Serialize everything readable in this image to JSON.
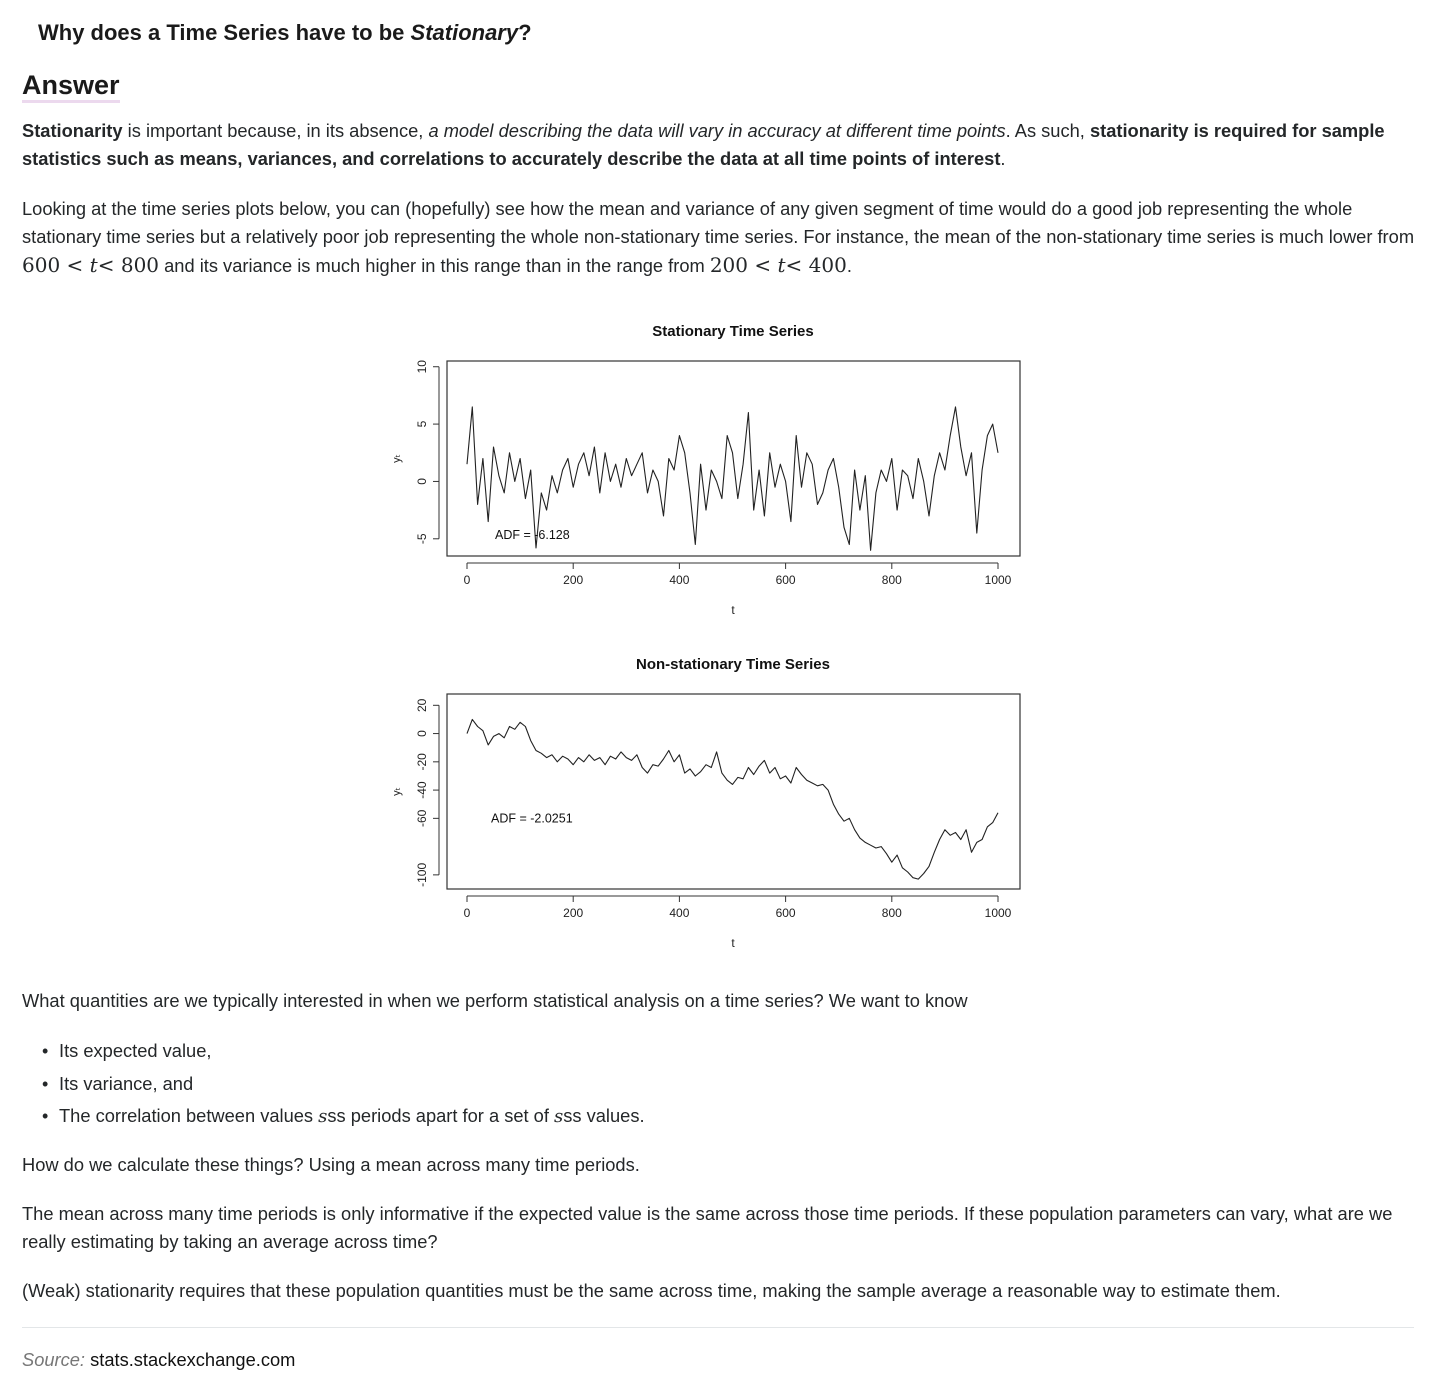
{
  "question": {
    "title_pre": "Why does a Time Series have to be ",
    "title_em": "Stationary",
    "title_post": "?"
  },
  "answer_heading": "Answer",
  "p1": {
    "b1": "Stationarity",
    "t1": " is important because, in its absence, ",
    "i1": "a model describing the data will vary in accuracy at different time points",
    "t2": ". As such, ",
    "b2": "stationarity is required for sample statistics such as means, variances, and correlations to accurately describe the data at all time points of interest",
    "t3": "."
  },
  "p2": {
    "t1": "Looking at the time series plots below, you can (hopefully) see how the mean and variance of any given segment of time would do a good job representing the whole stationary time series but a relatively poor job representing the whole non-stationary time series. For instance, the mean of the non-stationary time series is much lower from ",
    "m1a": "600",
    "m1b": "t",
    "m1c": "800",
    "t2": " and its variance is much higher in this range than in the range from ",
    "m2a": "200",
    "m2b": "t",
    "m2c": "400",
    "t3": ".",
    "lt": "<"
  },
  "chart_data": [
    {
      "type": "line",
      "title": "Stationary Time Series",
      "xlabel": "t",
      "ylabel": "yₜ",
      "xlim": [
        0,
        1000
      ],
      "ylim": [
        -6.5,
        10.5
      ],
      "xticks": [
        "0",
        "200",
        "400",
        "600",
        "800",
        "1000"
      ],
      "yticks": [
        "-5",
        "0",
        "5",
        "10"
      ],
      "annotation": "ADF = -6.128",
      "x": [
        0,
        10,
        20,
        30,
        40,
        50,
        60,
        70,
        80,
        90,
        100,
        110,
        120,
        130,
        140,
        150,
        160,
        170,
        180,
        190,
        200,
        210,
        220,
        230,
        240,
        250,
        260,
        270,
        280,
        290,
        300,
        310,
        320,
        330,
        340,
        350,
        360,
        370,
        380,
        390,
        400,
        410,
        420,
        430,
        440,
        450,
        460,
        470,
        480,
        490,
        500,
        510,
        520,
        530,
        540,
        550,
        560,
        570,
        580,
        590,
        600,
        610,
        620,
        630,
        640,
        650,
        660,
        670,
        680,
        690,
        700,
        710,
        720,
        730,
        740,
        750,
        760,
        770,
        780,
        790,
        800,
        810,
        820,
        830,
        840,
        850,
        860,
        870,
        880,
        890,
        900,
        910,
        920,
        930,
        940,
        950,
        960,
        970,
        980,
        990,
        1000
      ],
      "values": [
        1.5,
        6.5,
        -2.0,
        2.0,
        -3.5,
        3.0,
        0.5,
        -1.0,
        2.5,
        0.0,
        2.0,
        -1.5,
        1.0,
        -5.8,
        -1.0,
        -2.5,
        0.5,
        -1.0,
        1.0,
        2.0,
        -0.5,
        1.5,
        2.5,
        0.5,
        3.0,
        -1.0,
        2.5,
        0.0,
        1.5,
        -0.5,
        2.0,
        0.5,
        1.5,
        2.5,
        -1.0,
        1.0,
        0.0,
        -3.0,
        2.0,
        1.0,
        4.0,
        2.5,
        -1.0,
        -5.5,
        1.5,
        -2.5,
        1.0,
        0.0,
        -1.5,
        4.0,
        2.5,
        -1.5,
        1.5,
        6.0,
        -2.5,
        1.0,
        -3.0,
        2.5,
        -0.5,
        1.5,
        0.0,
        -3.5,
        4.0,
        -0.5,
        2.5,
        1.5,
        -2.0,
        -1.0,
        1.0,
        2.0,
        -0.5,
        -4.0,
        -5.5,
        1.0,
        -2.5,
        0.5,
        -6.0,
        -1.0,
        1.0,
        0.0,
        2.0,
        -2.5,
        1.0,
        0.5,
        -1.5,
        2.0,
        0.0,
        -3.0,
        0.5,
        2.5,
        1.0,
        4.0,
        6.5,
        3.0,
        0.5,
        2.5,
        -4.5,
        1.0,
        4.0,
        5.0,
        2.5
      ]
    },
    {
      "type": "line",
      "title": "Non-stationary Time Series",
      "xlabel": "t",
      "ylabel": "yₜ",
      "xlim": [
        0,
        1000
      ],
      "ylim": [
        -110,
        28
      ],
      "xticks": [
        "0",
        "200",
        "400",
        "600",
        "800",
        "1000"
      ],
      "yticks": [
        "-100",
        "-60",
        "-40",
        "-20",
        "0",
        "20"
      ],
      "annotation": "ADF = -2.0251",
      "x": [
        0,
        10,
        20,
        30,
        40,
        50,
        60,
        70,
        80,
        90,
        100,
        110,
        120,
        130,
        140,
        150,
        160,
        170,
        180,
        190,
        200,
        210,
        220,
        230,
        240,
        250,
        260,
        270,
        280,
        290,
        300,
        310,
        320,
        330,
        340,
        350,
        360,
        370,
        380,
        390,
        400,
        410,
        420,
        430,
        440,
        450,
        460,
        470,
        480,
        490,
        500,
        510,
        520,
        530,
        540,
        550,
        560,
        570,
        580,
        590,
        600,
        610,
        620,
        630,
        640,
        650,
        660,
        670,
        680,
        690,
        700,
        710,
        720,
        730,
        740,
        750,
        760,
        770,
        780,
        790,
        800,
        810,
        820,
        830,
        840,
        850,
        860,
        870,
        880,
        890,
        900,
        910,
        920,
        930,
        940,
        950,
        960,
        970,
        980,
        990,
        1000
      ],
      "values": [
        0.0,
        10.0,
        5.0,
        2.0,
        -8.0,
        -2.0,
        0.0,
        -3.0,
        5.0,
        3.0,
        8.0,
        5.0,
        -5.0,
        -12.0,
        -14.0,
        -17.0,
        -15.0,
        -20.0,
        -16.0,
        -18.0,
        -22.0,
        -17.0,
        -20.0,
        -15.0,
        -19.0,
        -17.0,
        -22.0,
        -16.0,
        -18.0,
        -13.0,
        -17.0,
        -19.0,
        -15.0,
        -24.0,
        -28.0,
        -22.0,
        -23.0,
        -18.0,
        -12.0,
        -20.0,
        -15.0,
        -28.0,
        -25.0,
        -30.0,
        -27.0,
        -22.0,
        -24.0,
        -13.0,
        -28.0,
        -33.0,
        -36.0,
        -31.0,
        -32.0,
        -24.0,
        -29.0,
        -23.0,
        -19.0,
        -28.0,
        -24.0,
        -32.0,
        -30.0,
        -35.0,
        -24.0,
        -29.0,
        -33.0,
        -35.0,
        -37.0,
        -36.0,
        -40.0,
        -50.0,
        -57.0,
        -62.0,
        -60.0,
        -68.0,
        -74.0,
        -77.0,
        -79.0,
        -81.0,
        -80.0,
        -85.0,
        -91.0,
        -86.0,
        -95.0,
        -98.0,
        -102.0,
        -103.0,
        -99.0,
        -94.0,
        -84.0,
        -75.0,
        -68.0,
        -72.0,
        -70.0,
        -75.0,
        -68.0,
        -84.0,
        -77.0,
        -75.0,
        -66.0,
        -63.0,
        -56.0
      ]
    }
  ],
  "p3": "What quantities are we typically interested in when we perform statistical analysis on a time series? We want to know",
  "bullets": {
    "b1": "Its expected value,",
    "b2": "Its variance, and",
    "b3a": "The correlation between values ",
    "b3m1": "s",
    "b3b": "ss periods apart for a set of ",
    "b3m2": "s",
    "b3c": "ss values."
  },
  "p4": "How do we calculate these things? Using a mean across many time periods.",
  "p5": "The mean across many time periods is only informative if the expected value is the same across those time periods. If these population parameters can vary, what are we really estimating by taking an average across time?",
  "p6": "(Weak) stationarity requires that these population quantities must be the same across time, making the sample average a reasonable way to estimate them.",
  "source": {
    "label": "Source:",
    "site": "stats.stackexchange.com"
  }
}
